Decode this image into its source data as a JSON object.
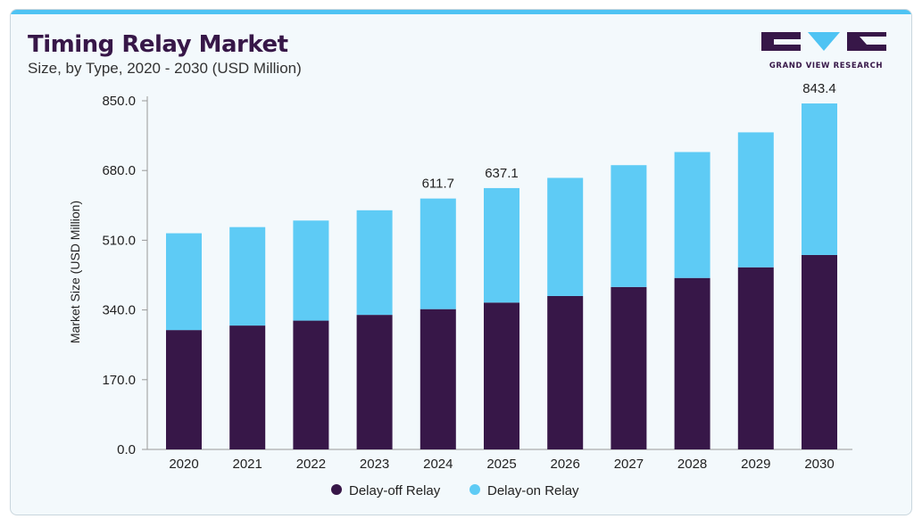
{
  "header": {
    "title": "Timing Relay Market",
    "subtitle": "Size, by Type, 2020 - 2030 (USD Million)"
  },
  "brand": {
    "name": "GRAND VIEW RESEARCH",
    "logo_icon": "gvr-logo-icon"
  },
  "colors": {
    "accent_bar": "#4ec3f3",
    "title": "#371748",
    "delay_off": "#371748",
    "delay_on": "#5ecbf5"
  },
  "chart_data": {
    "type": "bar",
    "stacked": true,
    "categories": [
      "2020",
      "2021",
      "2022",
      "2023",
      "2024",
      "2025",
      "2026",
      "2027",
      "2028",
      "2029",
      "2030"
    ],
    "series": [
      {
        "name": "Delay-off Relay",
        "values": [
          291,
          302,
          314,
          328,
          342,
          358,
          374,
          396,
          418,
          444,
          474
        ]
      },
      {
        "name": "Delay-on Relay",
        "values": [
          236,
          240,
          244,
          255,
          269.7,
          279.1,
          288,
          297,
          307,
          329,
          369.4
        ]
      }
    ],
    "totals_labeled": {
      "2024": "611.7",
      "2025": "637.1",
      "2030": "843.4"
    },
    "ylabel": "Market Size (USD Million)",
    "xlabel": "",
    "ylim": [
      0,
      850
    ],
    "yticks": [
      "850.0",
      "680.0",
      "510.0",
      "340.0",
      "170.0",
      "0.0"
    ],
    "ytick_values": [
      850,
      680,
      510,
      340,
      170,
      0
    ],
    "grid": false,
    "legend_position": "bottom"
  }
}
